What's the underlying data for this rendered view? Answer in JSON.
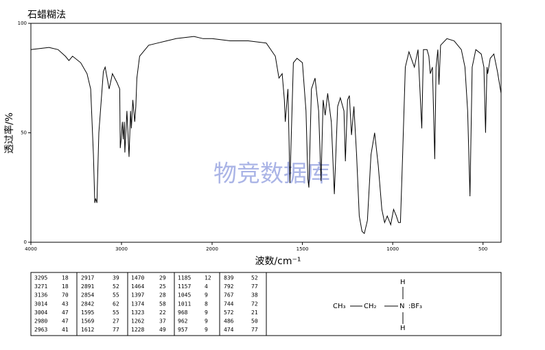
{
  "chart_data": {
    "type": "line",
    "title": "石蜡糊法",
    "watermark": "物竞数据库",
    "x_label": "波数/cm⁻¹",
    "y_label": "透过率/%",
    "xlim": [
      4000,
      400
    ],
    "xscale_break": 2000,
    "ylim": [
      0,
      100
    ],
    "xticks": [
      4000,
      3000,
      2000,
      1500,
      1000,
      500
    ],
    "yticks": [
      0,
      50,
      100
    ],
    "color": "#000000",
    "x": [
      4000,
      3800,
      3700,
      3620,
      3580,
      3540,
      3450,
      3380,
      3340,
      3310,
      3295,
      3285,
      3271,
      3250,
      3200,
      3180,
      3136,
      3100,
      3050,
      3020,
      3014,
      3004,
      2990,
      2980,
      2970,
      2963,
      2940,
      2917,
      2900,
      2891,
      2875,
      2854,
      2842,
      2830,
      2800,
      2700,
      2600,
      2500,
      2400,
      2200,
      2100,
      2000,
      1900,
      1800,
      1700,
      1650,
      1630,
      1612,
      1600,
      1595,
      1580,
      1569,
      1550,
      1530,
      1500,
      1480,
      1470,
      1464,
      1450,
      1430,
      1410,
      1397,
      1385,
      1374,
      1360,
      1340,
      1323,
      1305,
      1290,
      1270,
      1262,
      1250,
      1240,
      1228,
      1215,
      1200,
      1185,
      1170,
      1157,
      1140,
      1120,
      1100,
      1080,
      1060,
      1045,
      1030,
      1011,
      995,
      980,
      968,
      962,
      957,
      945,
      930,
      910,
      880,
      860,
      839,
      830,
      810,
      800,
      792,
      780,
      767,
      760,
      750,
      744,
      735,
      700,
      660,
      620,
      600,
      585,
      572,
      560,
      540,
      510,
      495,
      486,
      478,
      474,
      460,
      440,
      420,
      400
    ],
    "values": [
      88,
      89,
      88,
      85,
      83,
      85,
      82,
      77,
      70,
      40,
      18,
      20,
      18,
      50,
      78,
      80,
      70,
      77,
      73,
      70,
      43,
      47,
      55,
      47,
      55,
      41,
      60,
      39,
      60,
      52,
      65,
      55,
      62,
      75,
      85,
      90,
      91,
      92,
      93,
      94,
      93,
      93,
      92,
      92,
      91,
      85,
      75,
      77,
      65,
      55,
      70,
      27,
      82,
      84,
      82,
      60,
      29,
      25,
      70,
      75,
      60,
      28,
      65,
      58,
      68,
      55,
      22,
      62,
      66,
      60,
      37,
      65,
      67,
      49,
      62,
      40,
      12,
      5,
      4,
      10,
      40,
      50,
      35,
      15,
      9,
      12,
      8,
      15,
      12,
      9,
      9,
      9,
      40,
      80,
      87,
      80,
      88,
      52,
      88,
      88,
      85,
      77,
      80,
      38,
      80,
      88,
      72,
      90,
      93,
      92,
      88,
      80,
      60,
      21,
      80,
      88,
      86,
      80,
      50,
      80,
      77,
      84,
      86,
      78,
      68
    ]
  },
  "table": {
    "rows": [
      [
        "3295",
        "18",
        "2917",
        "39",
        "1470",
        "29",
        "1185",
        "12",
        "839",
        "52"
      ],
      [
        "3271",
        "18",
        "2891",
        "52",
        "1464",
        "25",
        "1157",
        "4",
        "792",
        "77"
      ],
      [
        "3136",
        "70",
        "2854",
        "55",
        "1397",
        "28",
        "1045",
        "9",
        "767",
        "38"
      ],
      [
        "3014",
        "43",
        "2842",
        "62",
        "1374",
        "58",
        "1011",
        "8",
        "744",
        "72"
      ],
      [
        "3004",
        "47",
        "1595",
        "55",
        "1323",
        "22",
        "968",
        "9",
        "572",
        "21"
      ],
      [
        "2980",
        "47",
        "1569",
        "27",
        "1262",
        "37",
        "962",
        "9",
        "486",
        "50"
      ],
      [
        "2963",
        "41",
        "1612",
        "77",
        "1228",
        "49",
        "957",
        "9",
        "474",
        "77"
      ]
    ]
  },
  "structure": {
    "group1": "CH₃",
    "group2": "CH₂",
    "center": "N",
    "ligand": ":BF₃",
    "top": "H",
    "bottom": "H"
  }
}
